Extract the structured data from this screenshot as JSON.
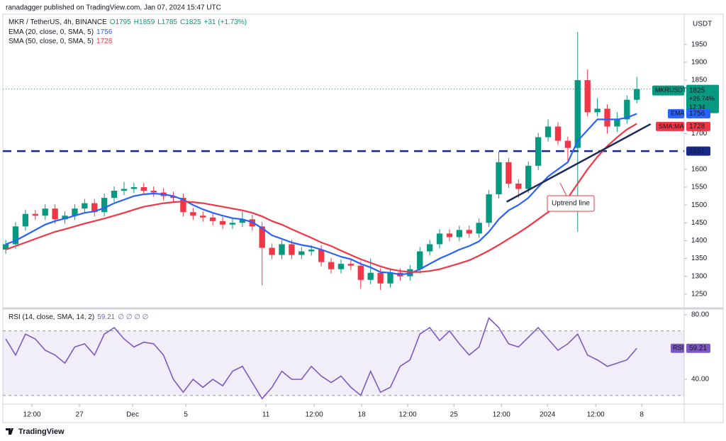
{
  "header": {
    "publisher": "ranadagger published on TradingView.com, Jan 07, 2024 15:47 UTC"
  },
  "chart_data": {
    "type": "candlestick",
    "symbol_title": "MKR / TetherUS, 4h, BINANCE",
    "ohlc_legend": [
      "O1795",
      "H1859",
      "L1785",
      "C1825",
      "+31 (+1.73%)"
    ],
    "currency": "USDT",
    "up_color": "#089981",
    "down_color": "#f23645",
    "open": [
      1375,
      1390,
      1440,
      1475,
      1470,
      1490,
      1460,
      1470,
      1490,
      1505,
      1480,
      1520,
      1540,
      1545,
      1550,
      1540,
      1535,
      1525,
      1520,
      1480,
      1470,
      1465,
      1455,
      1445,
      1450,
      1460,
      1440,
      1380,
      1360,
      1390,
      1360,
      1370,
      1375,
      1340,
      1320,
      1335,
      1330,
      1290,
      1310,
      1280,
      1310,
      1300,
      1320,
      1370,
      1390,
      1420,
      1410,
      1430,
      1420,
      1450,
      1530,
      1620,
      1560,
      1545,
      1610,
      1690,
      1720,
      1680,
      1660,
      1850,
      1760,
      1770,
      1720,
      1740,
      1795
    ],
    "high": [
      1402,
      1452,
      1487,
      1487,
      1502,
      1502,
      1482,
      1502,
      1517,
      1517,
      1532,
      1552,
      1565,
      1562,
      1562,
      1552,
      1547,
      1537,
      1532,
      1492,
      1482,
      1477,
      1467,
      1462,
      1482,
      1472,
      1452,
      1392,
      1402,
      1402,
      1382,
      1387,
      1387,
      1352,
      1347,
      1347,
      1342,
      1350,
      1322,
      1322,
      1322,
      1332,
      1382,
      1402,
      1432,
      1432,
      1442,
      1442,
      1462,
      1542,
      1650,
      1632,
      1572,
      1622,
      1702,
      1740,
      1732,
      1692,
      1985,
      1880,
      1800,
      1782,
      1760,
      1807,
      1859
    ],
    "low": [
      1363,
      1378,
      1428,
      1458,
      1458,
      1448,
      1448,
      1458,
      1478,
      1468,
      1468,
      1508,
      1528,
      1533,
      1528,
      1523,
      1513,
      1508,
      1468,
      1458,
      1453,
      1443,
      1433,
      1433,
      1438,
      1428,
      1275,
      1348,
      1348,
      1348,
      1348,
      1358,
      1328,
      1308,
      1308,
      1318,
      1265,
      1278,
      1262,
      1268,
      1288,
      1288,
      1308,
      1358,
      1378,
      1398,
      1398,
      1408,
      1408,
      1438,
      1518,
      1548,
      1520,
      1533,
      1598,
      1678,
      1668,
      1620,
      1425,
      1748,
      1748,
      1700,
      1705,
      1728,
      1785
    ],
    "close": [
      1390,
      1440,
      1475,
      1470,
      1490,
      1460,
      1470,
      1490,
      1505,
      1480,
      1520,
      1540,
      1545,
      1550,
      1540,
      1535,
      1525,
      1520,
      1480,
      1470,
      1465,
      1455,
      1445,
      1450,
      1460,
      1440,
      1380,
      1360,
      1390,
      1360,
      1370,
      1375,
      1340,
      1320,
      1335,
      1330,
      1290,
      1310,
      1280,
      1310,
      1300,
      1320,
      1370,
      1390,
      1420,
      1410,
      1430,
      1420,
      1450,
      1530,
      1620,
      1560,
      1545,
      1610,
      1690,
      1720,
      1680,
      1660,
      1850,
      1760,
      1770,
      1720,
      1740,
      1795,
      1825
    ],
    "series": [
      {
        "name": "EMA (20, close, 0, SMA, 5)",
        "short": "EMA",
        "color": "#2962ff",
        "values": [
          1390,
          1400,
          1415,
          1430,
          1445,
          1455,
          1462,
          1470,
          1478,
          1482,
          1492,
          1505,
          1515,
          1525,
          1530,
          1532,
          1530,
          1525,
          1515,
          1500,
          1488,
          1478,
          1470,
          1463,
          1460,
          1452,
          1435,
          1415,
          1405,
          1395,
          1388,
          1383,
          1375,
          1365,
          1355,
          1348,
          1335,
          1325,
          1312,
          1310,
          1305,
          1308,
          1320,
          1335,
          1350,
          1362,
          1375,
          1385,
          1398,
          1425,
          1460,
          1485,
          1500,
          1520,
          1550,
          1580,
          1600,
          1620,
          1680,
          1710,
          1740,
          1740,
          1740,
          1745,
          1756
        ]
      },
      {
        "name": "SMA (50, close, 0, SMA, 5)",
        "short": "SMA:MA",
        "color": "#f23645",
        "values": [
          1375,
          1385,
          1395,
          1405,
          1415,
          1425,
          1432,
          1440,
          1448,
          1455,
          1462,
          1470,
          1478,
          1487,
          1495,
          1500,
          1505,
          1508,
          1510,
          1508,
          1505,
          1500,
          1495,
          1490,
          1485,
          1478,
          1468,
          1455,
          1445,
          1432,
          1420,
          1408,
          1395,
          1385,
          1372,
          1360,
          1348,
          1338,
          1328,
          1320,
          1315,
          1312,
          1312,
          1315,
          1320,
          1328,
          1336,
          1345,
          1358,
          1372,
          1388,
          1405,
          1422,
          1440,
          1460,
          1480,
          1500,
          1520,
          1560,
          1600,
          1635,
          1665,
          1690,
          1712,
          1728
        ]
      }
    ],
    "price_label": {
      "ticker": "MKRUSDT",
      "change": "+26.74%",
      "countdown": "12:34"
    },
    "level": {
      "value": 1651,
      "color": "#1a2a8a"
    },
    "trend_line": {
      "x": [
        50.8,
        65.4
      ],
      "y": [
        1509,
        1727
      ],
      "label": "Uptrend line",
      "color": "#1e2a5a"
    },
    "xlim": [
      -0.58,
      68.8
    ],
    "xticks": [
      {
        "value": 2.66,
        "label": "12:00"
      },
      {
        "value": 7.48,
        "label": "27"
      },
      {
        "value": 12.87,
        "label": "Dec"
      },
      {
        "value": 18.27,
        "label": "5"
      },
      {
        "value": 26.39,
        "label": "11"
      },
      {
        "value": 31.28,
        "label": "12:00"
      },
      {
        "value": 36.1,
        "label": "18"
      },
      {
        "value": 40.77,
        "label": "12:00"
      },
      {
        "value": 45.45,
        "label": "25"
      },
      {
        "value": 50.27,
        "label": "12:00"
      },
      {
        "value": 54.94,
        "label": "2024"
      },
      {
        "value": 59.83,
        "label": "12:00"
      },
      {
        "value": 64.5,
        "label": "8"
      }
    ],
    "ylim": [
      1216,
      2035
    ],
    "yticks": [
      1250,
      1300,
      1350,
      1400,
      1450,
      1500,
      1550,
      1600,
      1700,
      1850,
      1900,
      1950
    ],
    "grid": false,
    "rsi": {
      "name": "RSI (14, close, SMA, 14, 2)",
      "extras": "∅ ∅ ∅ ∅",
      "short": "RSI",
      "color": "#7e57c2",
      "values": [
        65,
        55,
        68,
        65,
        58,
        55,
        50,
        60,
        62,
        55,
        68,
        72,
        65,
        60,
        63,
        62,
        55,
        40,
        32,
        40,
        35,
        40,
        36,
        45,
        48,
        38,
        28,
        35,
        45,
        40,
        40,
        48,
        42,
        38,
        42,
        35,
        30,
        45,
        32,
        35,
        48,
        52,
        68,
        72,
        64,
        70,
        62,
        55,
        60,
        78,
        72,
        62,
        60,
        66,
        72,
        65,
        58,
        62,
        68,
        55,
        52,
        48,
        50,
        52,
        59.21
      ],
      "ylim": [
        24.6,
        82.6
      ],
      "yticks": [
        {
          "value": 40,
          "label": "40.00"
        },
        {
          "value": 80,
          "label": "80.00"
        }
      ],
      "bands": [
        30,
        70
      ]
    }
  },
  "footer": {
    "brand": "TradingView"
  }
}
